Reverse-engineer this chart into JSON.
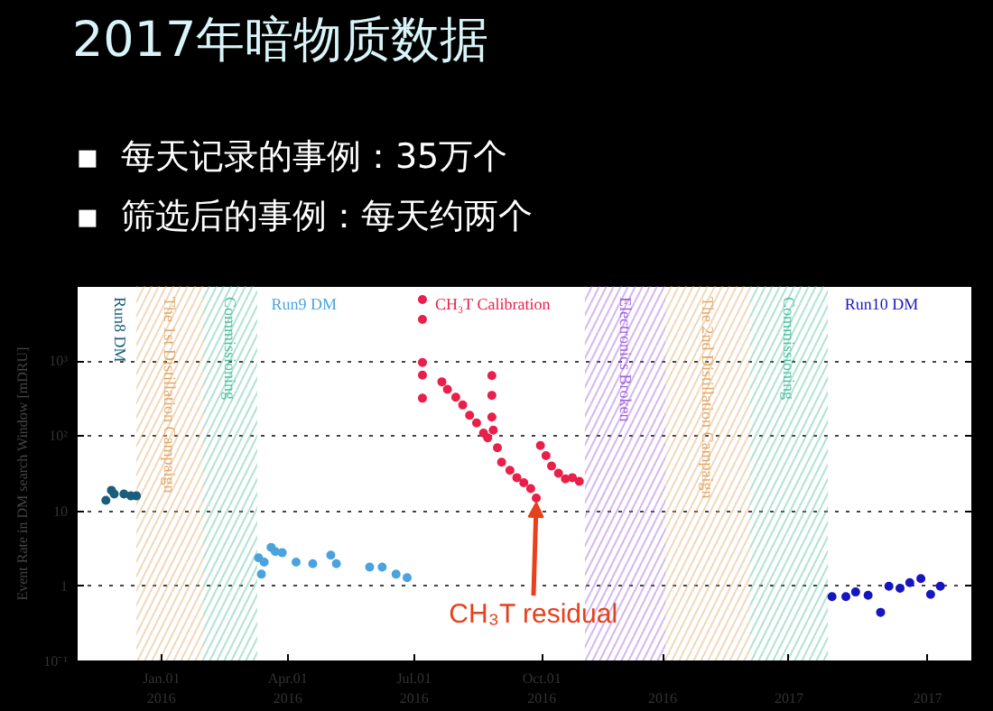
{
  "chart_data": {
    "type": "scatter",
    "title": "2017年暗物质数据",
    "ylabel": "Event Rate in DM search Window [mDRU]",
    "annotations": [
      "▪  每天记录的事例：35万个",
      "▪  筛选后的事例：每天约两个",
      {
        "text": "CH₃T residual",
        "x": "2016-09-27",
        "y": 15
      }
    ],
    "xlim": [
      "2015-11-01",
      "2017-08-07"
    ],
    "xticks": [
      {
        "value": "2016-01-01",
        "label": "Jan.01\n2016"
      },
      {
        "value": "2016-04-01",
        "label": "Apr.01\n2016"
      },
      {
        "value": "2016-07-01",
        "label": "Jul.01\n2016"
      },
      {
        "value": "2016-10-01",
        "label": "Oct.01\n2016"
      },
      {
        "value": "2016-12-27",
        "label": "2016"
      },
      {
        "value": "2017-03-28",
        "label": "2017"
      },
      {
        "value": "2017-07-06",
        "label": "2017"
      }
    ],
    "ylim": [
      0.1,
      10000
    ],
    "log": true,
    "yticks": [
      {
        "value": 0.1,
        "label": "10⁻¹"
      },
      1,
      10,
      {
        "value": 100,
        "label": "10²"
      },
      {
        "value": 1000,
        "label": "10³"
      }
    ],
    "grid": "y",
    "marker": "circle",
    "series": [
      {
        "name": "Run8 DM",
        "color": "#1b5e7b",
        "x": [
          "2015-11-22",
          "2015-11-26",
          "2015-11-28",
          "2015-12-05",
          "2015-12-10",
          "2015-12-14"
        ],
        "values": [
          14,
          19,
          17,
          17,
          16,
          16
        ]
      },
      {
        "name": "Run9 DM",
        "color": "#4aa3df",
        "x": [
          "2016-03-11",
          "2016-03-13",
          "2016-03-15",
          "2016-03-20",
          "2016-03-23",
          "2016-03-28",
          "2016-04-07",
          "2016-04-19",
          "2016-05-02",
          "2016-05-06",
          "2016-05-30",
          "2016-06-08",
          "2016-06-18",
          "2016-06-26"
        ],
        "values": [
          2.4,
          1.45,
          2.1,
          3.3,
          2.9,
          2.8,
          2.1,
          2.0,
          2.6,
          2.0,
          1.8,
          1.8,
          1.45,
          1.3
        ]
      },
      {
        "name": "CH₃T Calibration",
        "color": "#e8204a",
        "x": [
          "2016-07-07",
          "2016-07-07",
          "2016-07-07",
          "2016-07-07",
          "2016-07-07",
          "2016-07-21",
          "2016-07-25",
          "2016-07-31",
          "2016-08-05",
          "2016-08-10",
          "2016-08-15",
          "2016-08-20",
          "2016-08-23",
          "2016-08-26",
          "2016-08-26",
          "2016-08-26",
          "2016-08-27",
          "2016-08-30",
          "2016-09-02",
          "2016-09-08",
          "2016-09-13",
          "2016-09-18",
          "2016-09-23",
          "2016-09-27",
          "2016-09-30",
          "2016-10-04",
          "2016-10-08",
          "2016-10-13",
          "2016-10-18",
          "2016-10-23",
          "2016-10-28"
        ],
        "values": [
          6600,
          3600,
          960,
          650,
          320,
          530,
          420,
          330,
          260,
          190,
          150,
          110,
          95,
          640,
          350,
          180,
          120,
          70,
          45,
          35,
          28,
          24,
          20,
          15,
          75,
          55,
          40,
          32,
          27,
          28,
          25
        ]
      },
      {
        "name": "Run10 DM",
        "color": "#1616c0",
        "x": [
          "2017-04-28",
          "2017-05-08",
          "2017-05-15",
          "2017-05-24",
          "2017-06-02",
          "2017-06-08",
          "2017-06-16",
          "2017-06-23",
          "2017-07-01",
          "2017-07-08",
          "2017-07-15"
        ],
        "values": [
          0.73,
          0.73,
          0.84,
          0.76,
          0.45,
          1.0,
          0.94,
          1.12,
          1.27,
          0.78,
          1.0
        ]
      }
    ],
    "bands": [
      {
        "axis": "x",
        "from": "2015-12-14",
        "to": "2016-01-31",
        "label": "The 1st Distillation Campaign",
        "color": "#e0a868"
      },
      {
        "axis": "x",
        "from": "2016-01-31",
        "to": "2016-03-10",
        "label": "Commissioning",
        "color": "#50c0a0"
      },
      {
        "axis": "x",
        "from": "2016-11-01",
        "to": "2016-12-29",
        "label": "Electronics Broken",
        "color": "#a060e0"
      },
      {
        "axis": "x",
        "from": "2016-12-29",
        "to": "2017-02-28",
        "label": "The 2nd Distillation Campaign",
        "color": "#e0a868"
      },
      {
        "axis": "x",
        "from": "2017-02-28",
        "to": "2017-04-25",
        "label": "Commissioning",
        "color": "#50c0a0"
      }
    ]
  }
}
